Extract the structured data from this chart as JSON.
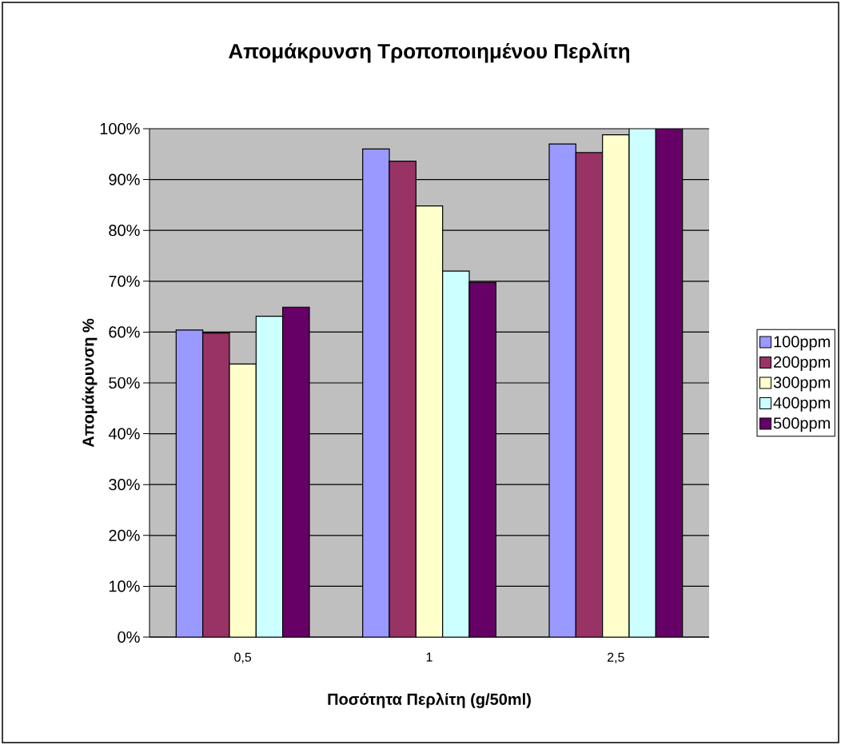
{
  "chart_data": {
    "type": "bar",
    "title": "Απομάκρυνση Τροποποιημένου Περλίτη",
    "xlabel": "Ποσότητα Περλίτη (g/50ml)",
    "ylabel": "Απομάκρυνση %",
    "categories": [
      "0,5",
      "1",
      "2,5"
    ],
    "series": [
      {
        "name": "100ppm",
        "color": "#9999ff",
        "values": [
          60.4,
          96.0,
          97.0
        ]
      },
      {
        "name": "200ppm",
        "color": "#993366",
        "values": [
          59.8,
          93.6,
          95.3
        ]
      },
      {
        "name": "300ppm",
        "color": "#ffffcc",
        "values": [
          53.7,
          84.8,
          98.8
        ]
      },
      {
        "name": "400ppm",
        "color": "#ccffff",
        "values": [
          63.1,
          72.0,
          100
        ]
      },
      {
        "name": "500ppm",
        "color": "#660066",
        "values": [
          64.9,
          69.8,
          100
        ]
      }
    ],
    "ylim": [
      0,
      100
    ],
    "yticks": [
      {
        "value": 0,
        "label": "0%"
      },
      {
        "value": 10,
        "label": "10%"
      },
      {
        "value": 20,
        "label": "20%"
      },
      {
        "value": 30,
        "label": "30%"
      },
      {
        "value": 40,
        "label": "40%"
      },
      {
        "value": 50,
        "label": "50%"
      },
      {
        "value": 60,
        "label": "60%"
      },
      {
        "value": 70,
        "label": "70%"
      },
      {
        "value": 80,
        "label": "80%"
      },
      {
        "value": 90,
        "label": "90%"
      },
      {
        "value": 100,
        "label": "100%"
      }
    ],
    "grid": "y",
    "legend": "right"
  }
}
